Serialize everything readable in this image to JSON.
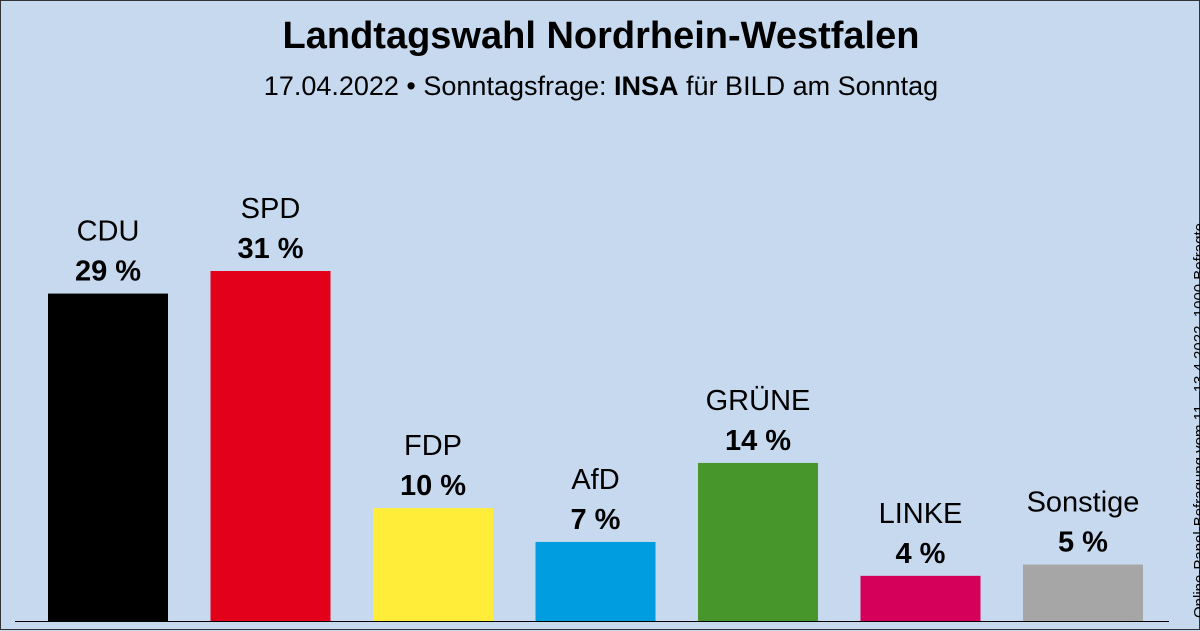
{
  "header": {
    "title": "Landtagswahl Nordrhein-Westfalen",
    "subtitle_prefix": "17.04.2022 • Sonntagsfrage: ",
    "subtitle_institute": "INSA",
    "subtitle_suffix": " für BILD am Sonntag"
  },
  "sidenote": "Online-Panel-Befragung vom 11.–13.4.2022, 1000 Befragte",
  "chart_data": {
    "type": "bar",
    "title": "Landtagswahl Nordrhein-Westfalen",
    "subtitle": "17.04.2022 • Sonntagsfrage: INSA für BILD am Sonntag",
    "categories": [
      "CDU",
      "SPD",
      "FDP",
      "AfD",
      "GRÜNE",
      "LINKE",
      "Sonstige"
    ],
    "values": [
      29,
      31,
      10,
      7,
      14,
      4,
      5
    ],
    "value_labels": [
      "29 %",
      "31 %",
      "10 %",
      "7 %",
      "14 %",
      "4 %",
      "5 %"
    ],
    "colors": [
      "#000000",
      "#e3001b",
      "#ffed3a",
      "#009ee0",
      "#46962b",
      "#d4005a",
      "#a6a6a6"
    ],
    "unit": "%",
    "ylim": [
      0,
      31
    ],
    "grid": false,
    "legend": "none"
  }
}
